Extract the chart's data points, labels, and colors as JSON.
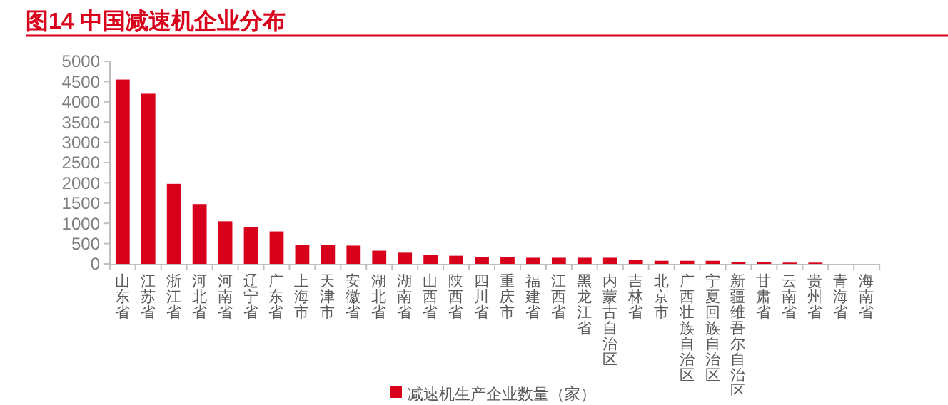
{
  "chart_data": {
    "type": "bar",
    "title": "图14  中国减速机企业分布",
    "categories": [
      "山东省",
      "江苏省",
      "浙江省",
      "河北省",
      "河南省",
      "辽宁省",
      "广东省",
      "上海市",
      "天津市",
      "安徽省",
      "湖北省",
      "湖南省",
      "山西省",
      "陕西省",
      "四川省",
      "重庆市",
      "福建省",
      "江西省",
      "黑龙江省",
      "内蒙古自治区",
      "吉林省",
      "北京市",
      "广西壮族自治区",
      "宁夏回族自治区",
      "新疆维吾尔自治区",
      "甘肃省",
      "云南省",
      "贵州省",
      "青海省",
      "海南省"
    ],
    "series": [
      {
        "name": "减速机生产企业数量（家）",
        "color": "#d9001b",
        "values": [
          4550,
          4200,
          1975,
          1475,
          1050,
          900,
          800,
          475,
          475,
          450,
          325,
          275,
          225,
          200,
          175,
          175,
          150,
          150,
          150,
          150,
          100,
          75,
          75,
          75,
          50,
          50,
          30,
          30,
          null,
          null
        ]
      }
    ],
    "ylim": [
      0,
      5000
    ],
    "yticks": [
      0,
      500,
      1000,
      1500,
      2000,
      2500,
      3000,
      3500,
      4000,
      4500,
      5000
    ],
    "grid": false,
    "legend": "bottom"
  }
}
